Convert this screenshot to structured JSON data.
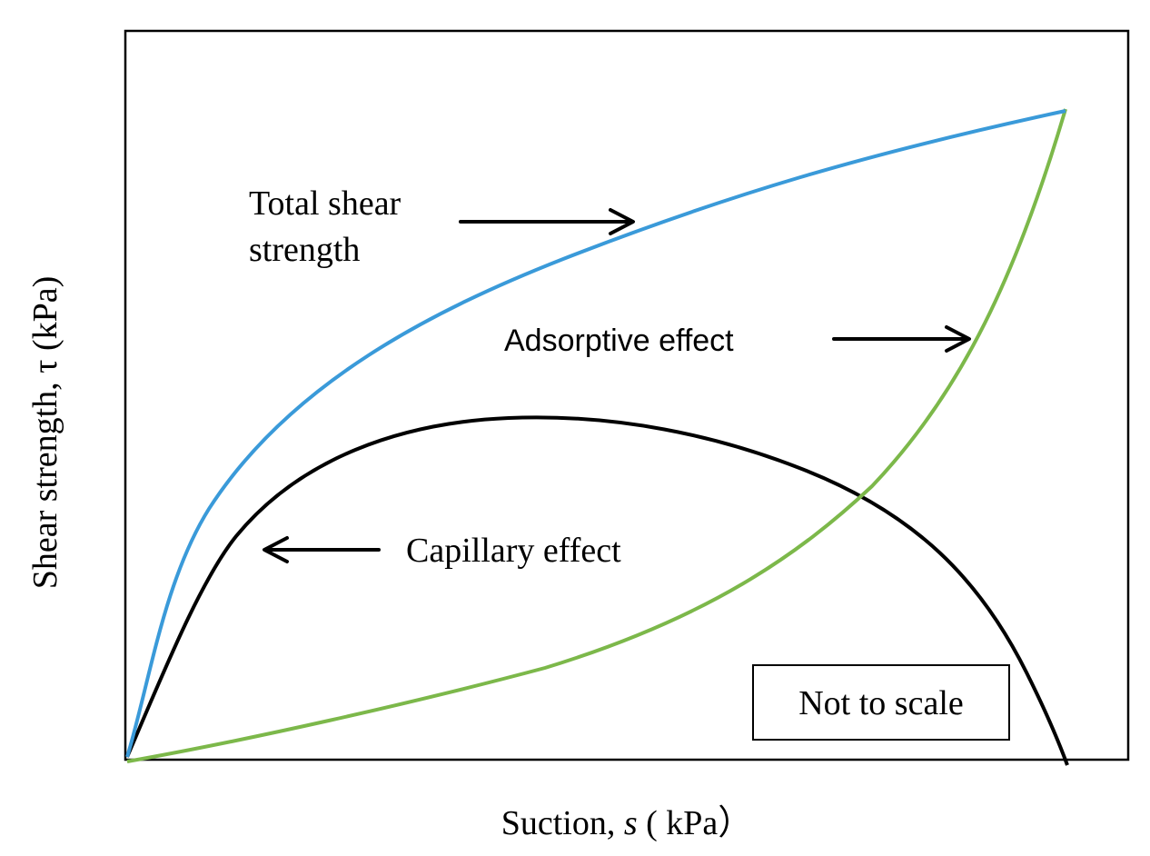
{
  "chart_data": {
    "type": "line",
    "xlabel": "Suction, s ( kPa）",
    "xlabel_prefix": "Suction, ",
    "xlabel_var": "s",
    "xlabel_unit": " ( kPa）",
    "ylabel": "Shear strength,  τ (kPa)",
    "legend": "none",
    "grid": false,
    "note": "Not to scale",
    "series": [
      {
        "name": "Total shear strength",
        "color": "#3A9AD9"
      },
      {
        "name": "Adsorptive effect",
        "color": "#7CB84A"
      },
      {
        "name": "Capillary effect",
        "color": "#000000"
      }
    ],
    "annotations": [
      {
        "lines": [
          "Total shear",
          "strength"
        ],
        "target": "Total shear strength"
      },
      {
        "lines": [
          "Adsorptive effect"
        ],
        "target": "Adsorptive effect"
      },
      {
        "lines": [
          "Capillary effect"
        ],
        "target": "Capillary effect"
      }
    ]
  }
}
